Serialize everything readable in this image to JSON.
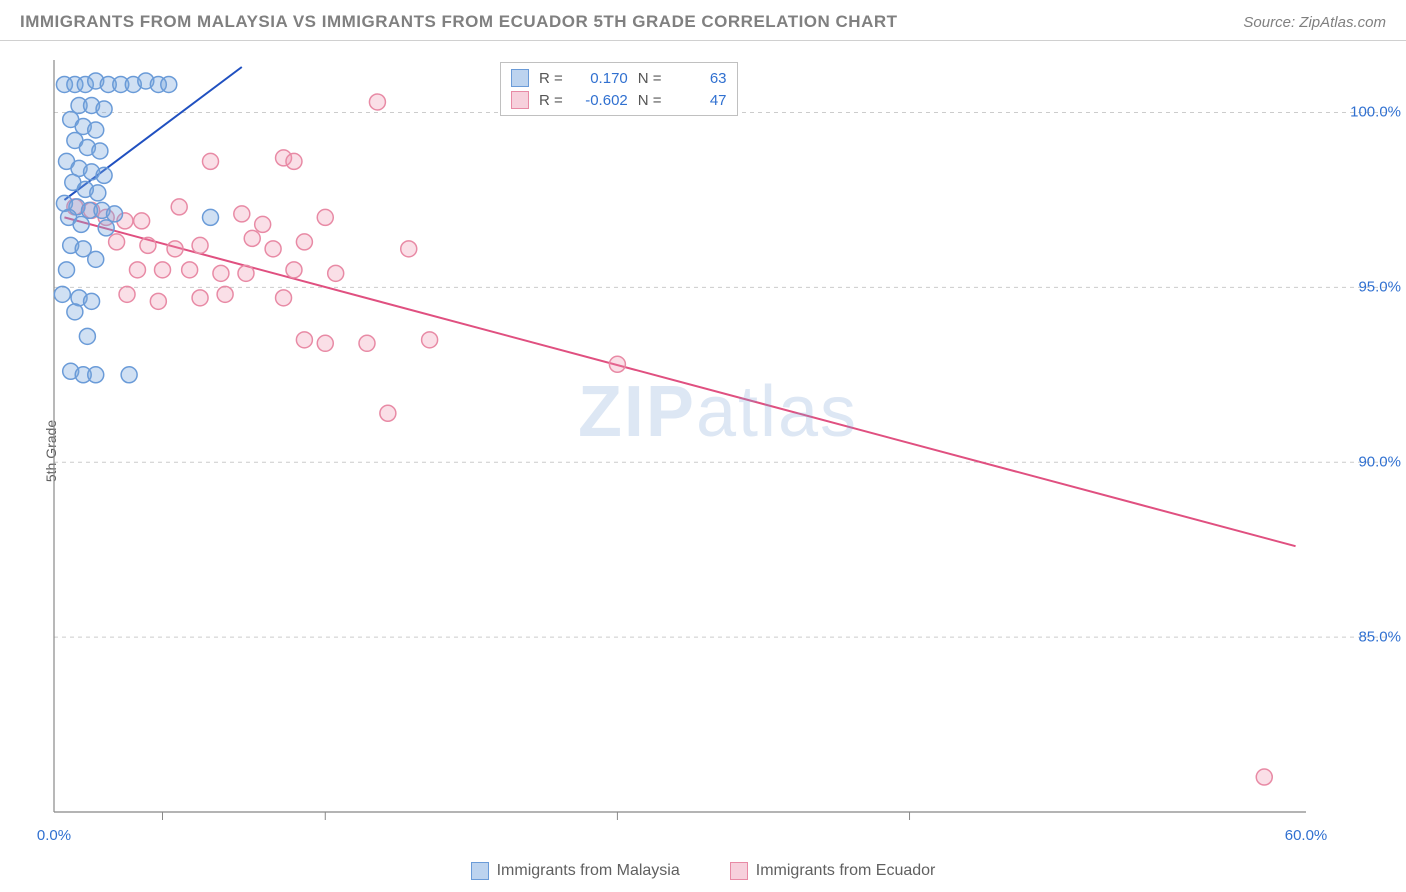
{
  "header": {
    "title": "IMMIGRANTS FROM MALAYSIA VS IMMIGRANTS FROM ECUADOR 5TH GRADE CORRELATION CHART",
    "source_prefix": "Source: ",
    "source": "ZipAtlas.com"
  },
  "chart": {
    "type": "scatter",
    "y_axis_label": "5th Grade",
    "watermark": "ZIPatlas",
    "xlim": [
      0,
      60
    ],
    "ylim": [
      80,
      101.5
    ],
    "x_ticks": [
      0,
      60
    ],
    "x_tick_labels": [
      "0.0%",
      "60.0%"
    ],
    "x_minor_ticks": [
      5.2,
      13.0,
      27.0,
      41.0
    ],
    "y_ticks": [
      85,
      90,
      95,
      100
    ],
    "y_tick_labels": [
      "85.0%",
      "90.0%",
      "95.0%",
      "100.0%"
    ],
    "grid_color": "#cccccc",
    "grid_dash": "4,4",
    "axis_color": "#888888",
    "background_color": "#ffffff",
    "marker_radius": 8,
    "marker_stroke_width": 1.5,
    "line_width": 2,
    "series": {
      "malaysia": {
        "label": "Immigrants from Malaysia",
        "color_fill": "rgba(120,165,220,0.35)",
        "color_stroke": "#6a9bd8",
        "color_line": "#2050c0",
        "swatch_fill": "#bcd3ef",
        "swatch_border": "#6a9bd8",
        "R": "0.170",
        "N": "63",
        "trend": {
          "x1": 0.5,
          "y1": 97.5,
          "x2": 9.0,
          "y2": 101.3
        },
        "points": [
          [
            0.5,
            100.8
          ],
          [
            1.0,
            100.8
          ],
          [
            1.5,
            100.8
          ],
          [
            2.0,
            100.9
          ],
          [
            2.6,
            100.8
          ],
          [
            3.2,
            100.8
          ],
          [
            3.8,
            100.8
          ],
          [
            4.4,
            100.9
          ],
          [
            5.0,
            100.8
          ],
          [
            5.5,
            100.8
          ],
          [
            1.2,
            100.2
          ],
          [
            1.8,
            100.2
          ],
          [
            2.4,
            100.1
          ],
          [
            0.8,
            99.8
          ],
          [
            1.4,
            99.6
          ],
          [
            2.0,
            99.5
          ],
          [
            1.0,
            99.2
          ],
          [
            1.6,
            99.0
          ],
          [
            2.2,
            98.9
          ],
          [
            0.6,
            98.6
          ],
          [
            1.2,
            98.4
          ],
          [
            1.8,
            98.3
          ],
          [
            2.4,
            98.2
          ],
          [
            0.9,
            98.0
          ],
          [
            1.5,
            97.8
          ],
          [
            2.1,
            97.7
          ],
          [
            0.5,
            97.4
          ],
          [
            1.1,
            97.3
          ],
          [
            1.7,
            97.2
          ],
          [
            2.3,
            97.2
          ],
          [
            2.9,
            97.1
          ],
          [
            0.7,
            97.0
          ],
          [
            1.3,
            96.8
          ],
          [
            2.5,
            96.7
          ],
          [
            7.5,
            97.0
          ],
          [
            0.8,
            96.2
          ],
          [
            1.4,
            96.1
          ],
          [
            2.0,
            95.8
          ],
          [
            0.6,
            95.5
          ],
          [
            1.2,
            94.7
          ],
          [
            1.8,
            94.6
          ],
          [
            0.4,
            94.8
          ],
          [
            1.0,
            94.3
          ],
          [
            1.6,
            93.6
          ],
          [
            0.8,
            92.6
          ],
          [
            1.4,
            92.5
          ],
          [
            2.0,
            92.5
          ],
          [
            3.6,
            92.5
          ]
        ]
      },
      "ecuador": {
        "label": "Immigrants from Ecuador",
        "color_fill": "rgba(240,150,175,0.30)",
        "color_stroke": "#e88aa5",
        "color_line": "#e05080",
        "swatch_fill": "#f7d0dc",
        "swatch_border": "#e88aa5",
        "R": "-0.602",
        "N": "47",
        "trend": {
          "x1": 0.5,
          "y1": 97.0,
          "x2": 59.5,
          "y2": 87.6
        },
        "points": [
          [
            15.5,
            100.3
          ],
          [
            7.5,
            98.6
          ],
          [
            11.0,
            98.7
          ],
          [
            11.5,
            98.6
          ],
          [
            1.0,
            97.3
          ],
          [
            1.8,
            97.2
          ],
          [
            2.5,
            97.0
          ],
          [
            3.4,
            96.9
          ],
          [
            4.2,
            96.9
          ],
          [
            6.0,
            97.3
          ],
          [
            9.0,
            97.1
          ],
          [
            10.0,
            96.8
          ],
          [
            13.0,
            97.0
          ],
          [
            3.0,
            96.3
          ],
          [
            4.5,
            96.2
          ],
          [
            5.8,
            96.1
          ],
          [
            7.0,
            96.2
          ],
          [
            9.5,
            96.4
          ],
          [
            10.5,
            96.1
          ],
          [
            12.0,
            96.3
          ],
          [
            17.0,
            96.1
          ],
          [
            4.0,
            95.5
          ],
          [
            5.2,
            95.5
          ],
          [
            6.5,
            95.5
          ],
          [
            8.0,
            95.4
          ],
          [
            9.2,
            95.4
          ],
          [
            11.5,
            95.5
          ],
          [
            13.5,
            95.4
          ],
          [
            3.5,
            94.8
          ],
          [
            5.0,
            94.6
          ],
          [
            7.0,
            94.7
          ],
          [
            8.2,
            94.8
          ],
          [
            11.0,
            94.7
          ],
          [
            12.0,
            93.5
          ],
          [
            13.0,
            93.4
          ],
          [
            15.0,
            93.4
          ],
          [
            18.0,
            93.5
          ],
          [
            27.0,
            92.8
          ],
          [
            16.0,
            91.4
          ],
          [
            58.0,
            81.0
          ]
        ]
      }
    },
    "legend_box": {
      "R_label": "R =",
      "N_label": "N ="
    }
  }
}
